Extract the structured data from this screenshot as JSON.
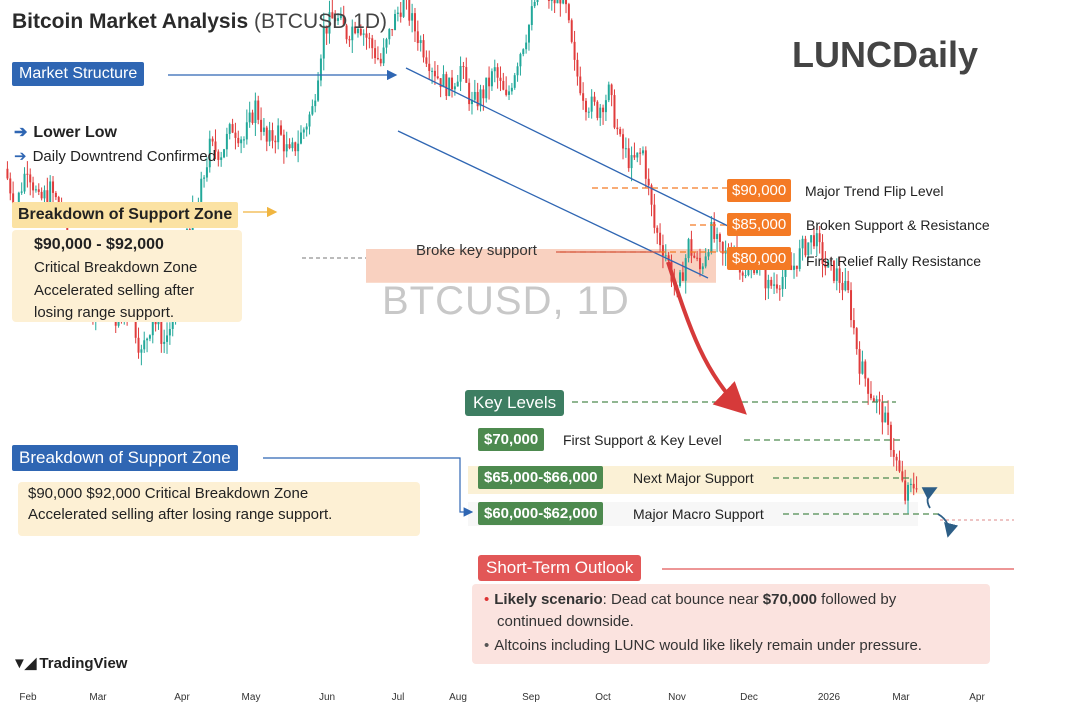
{
  "header": {
    "title": "Bitcoin Market Analysis",
    "symbol": "(BTCUSD 1D)",
    "brand": "LUNCDaily",
    "watermark": "BTCUSD, 1D",
    "tradingview": "TradingView"
  },
  "annotations": {
    "market_structure": "Market Structure",
    "lower_low": "Lower Low",
    "downtrend": "Daily Downtrend Confirmed",
    "breakdown_title": "Breakdown of Support Zone",
    "breakdown_range": "$90,000 - $92,000",
    "breakdown_zone": "Critical Breakdown Zone",
    "breakdown_note": "Accelerated selling after losing range support.",
    "breakdown_title_2": "Breakdown of Support Zone",
    "breakdown_line_1": "$90,000 $92,000 Critical Breakdown Zone",
    "breakdown_line_2": "Accelerated selling after losing range support.",
    "broke_key_support": "Broke key support"
  },
  "resistance_levels": [
    {
      "price": "$90,000",
      "label": "Major Trend Flip Level"
    },
    {
      "price": "$85,000",
      "label": "Broken Support & Resistance"
    },
    {
      "price": "$80,000",
      "label": "First Relief Rally Resistance"
    }
  ],
  "key_levels": {
    "title": "Key Levels",
    "levels": [
      {
        "price": "$70,000",
        "label": "First Support & Key Level"
      },
      {
        "price": "$65,000-$66,000",
        "label": "Next Major Support"
      },
      {
        "price": "$60,000-$62,000",
        "label": "Major Macro Support"
      }
    ]
  },
  "outlook": {
    "title": "Short-Term Outlook",
    "scenario_label": "Likely scenario",
    "scenario_pre": ": Dead cat bounce near ",
    "scenario_price": "$70,000",
    "scenario_post": " followed by",
    "scenario_line2": "continued downside.",
    "bullet2": "Altcoins including LUNC would like likely remain under pressure."
  },
  "colors": {
    "up": "#22a89a",
    "down": "#e03c3c",
    "accent_blue": "#2f66b3",
    "orange": "#f47a25",
    "green": "#4d8a4f",
    "red_tag": "#e25757"
  },
  "chart_data": {
    "type": "line",
    "title": "Bitcoin Market Analysis (BTCUSD 1D)",
    "xlabel": "",
    "ylabel": "",
    "x_ticks": [
      "Feb",
      "Mar",
      "Apr",
      "May",
      "Jun",
      "Jul",
      "Aug",
      "Sep",
      "Oct",
      "Nov",
      "Dec",
      "2026",
      "Mar",
      "Apr"
    ],
    "price_labels": [
      90000,
      85000,
      80000,
      70000,
      65500,
      61000
    ],
    "series": [
      {
        "values": [
          101000,
          96500,
          101500,
          97000,
          98500,
          96000,
          90000,
          87000,
          84000,
          86500,
          82500,
          85000,
          79000,
          83500,
          80500,
          84000,
          94000,
          97000,
          103500,
          103000,
          106000,
          104500,
          108500,
          104000,
          105500,
          102500,
          105000,
          108000,
          117500,
          119000,
          117000,
          118500,
          116000,
          113500,
          118000,
          121000,
          117500,
          114500,
          112000,
          110500,
          113000,
          108500,
          110000,
          112500,
          109000,
          114000,
          118000,
          123500,
          120500,
          122000,
          113000,
          109000,
          108000,
          110000,
          104000,
          101500,
          103000,
          94000,
          91000,
          86000,
          92000,
          89000,
          93500,
          90500,
          92000,
          88000,
          90500,
          87000,
          88000,
          89000,
          91500,
          93000,
          89500,
          88500,
          86000,
          78000,
          74500,
          72000,
          67500,
          62000,
          64000
        ]
      }
    ],
    "ylim": [
      55000,
      128000
    ],
    "grid": false,
    "legend": "none"
  }
}
